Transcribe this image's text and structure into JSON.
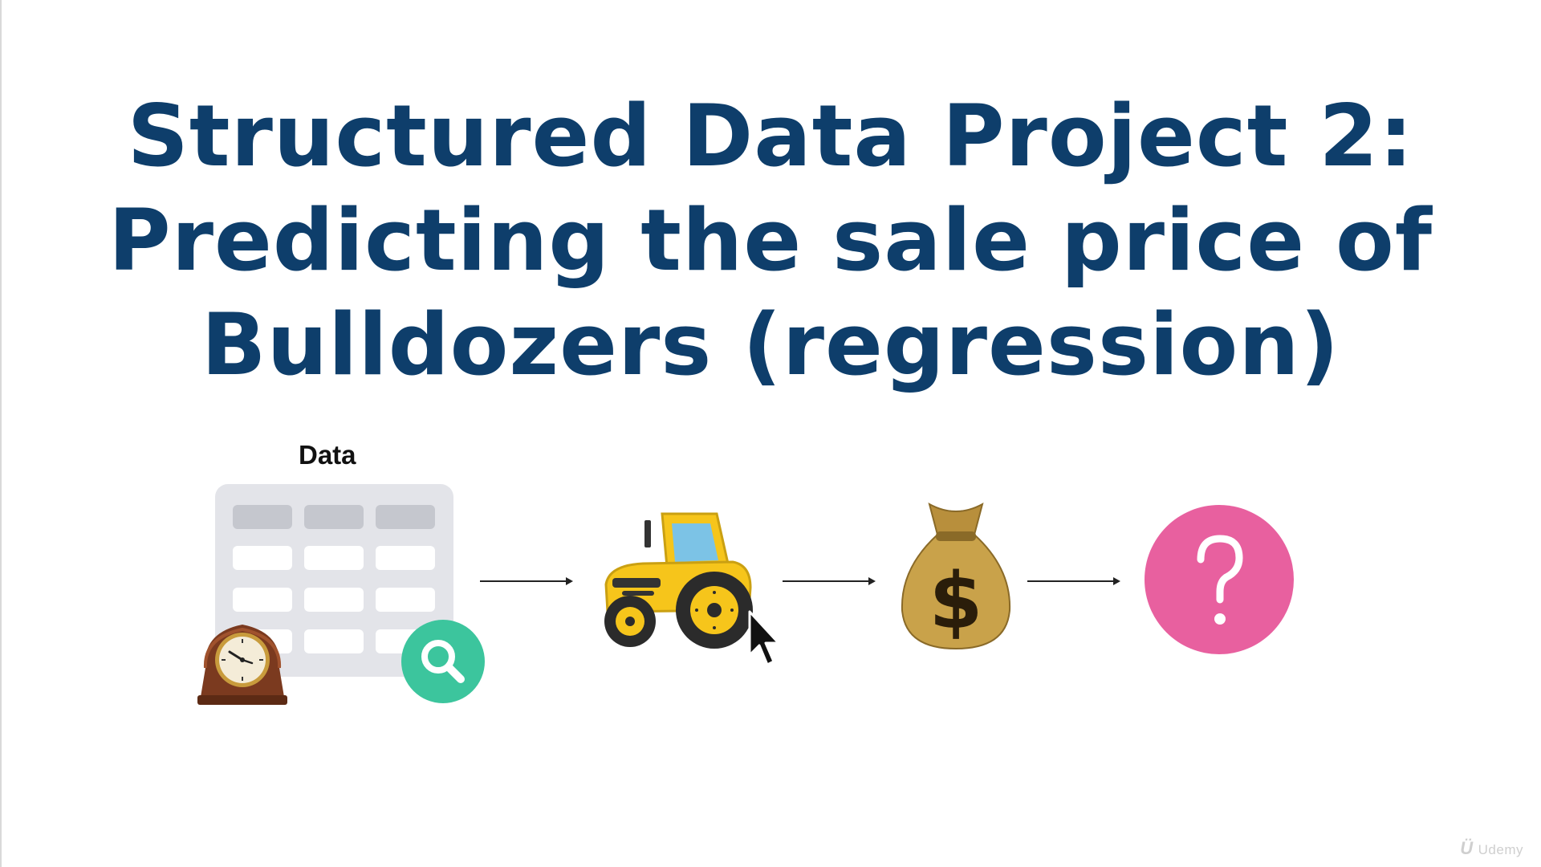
{
  "slide": {
    "title_lines": [
      "Structured Data Project 2:",
      "Predicting the sale price of",
      "Bulldozers (regression)"
    ],
    "data_label": "Data",
    "watermark": "Udemy"
  },
  "icons": {
    "clock": "mantel-clock-icon",
    "search": "magnifier-icon",
    "tractor": "tractor-icon",
    "cursor": "mouse-pointer-icon",
    "money": "money-bag-icon",
    "question": "question-mark-icon"
  },
  "colors": {
    "title": "#0e3e6b",
    "table_bg": "#e3e4e9",
    "table_header": "#c5c7ce",
    "search_green": "#3cc59d",
    "question_pink": "#e8609f",
    "tractor_yellow": "#f6c51b",
    "money_gold": "#c9a24a"
  }
}
